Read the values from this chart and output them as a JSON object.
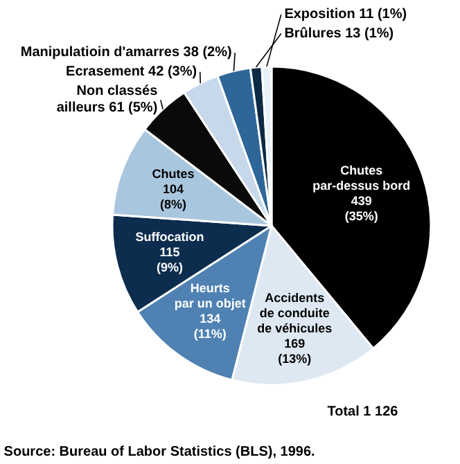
{
  "chart_data": {
    "type": "pie",
    "categories": [
      "Chutes\npar-dessus bord",
      "Accidents\nde conduite\nde véhicules",
      "Heurts\npar un objet",
      "Suffocation",
      "Chutes",
      "Non classés\nailleurs",
      "Ecrasement",
      "Manipulatioin d'amarres",
      "Brûlures",
      "Exposition"
    ],
    "values": [
      439,
      169,
      134,
      115,
      104,
      61,
      42,
      38,
      13,
      11
    ],
    "value_labels": [
      "439\n(35%)",
      "169\n(13%)",
      "134\n(11%)",
      "115\n(9%)",
      "104\n(8%)",
      "61 (5%)",
      "42 (3%)",
      "38 (2%)",
      "13 (1%)",
      "11 (1%)"
    ],
    "colors": [
      "#000000",
      "#dde8f2",
      "#4f82b3",
      "#0c2d4e",
      "#a9c6df",
      "#0a0a0a",
      "#c6d8ea",
      "#2f6699",
      "#0d2a45",
      "#e8f0f8"
    ],
    "annotations": [
      "Total 1 126",
      "Source: Bureau of Labor Statistics (BLS), 1996."
    ]
  }
}
